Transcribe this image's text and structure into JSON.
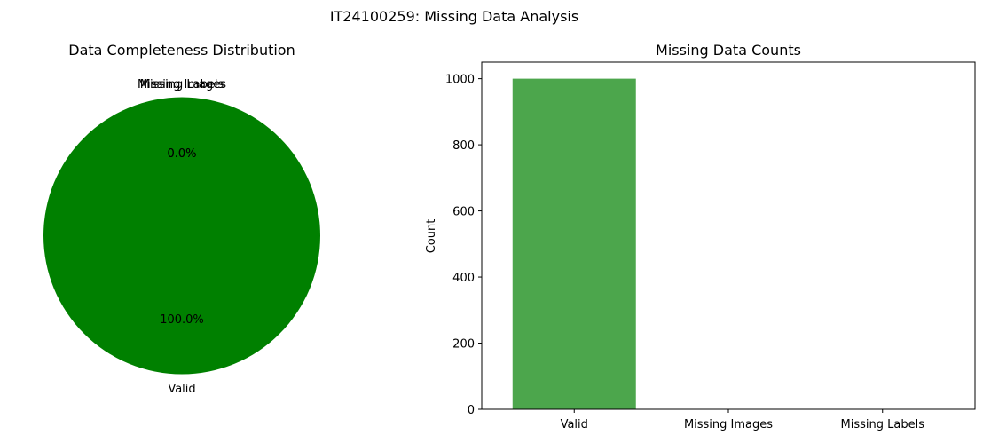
{
  "figure": {
    "title": "IT24100259: Missing Data Analysis"
  },
  "chart_data": [
    {
      "type": "pie",
      "title": "Data Completeness Distribution",
      "labels": [
        "Valid",
        "Missing Images",
        "Missing Labels"
      ],
      "values": [
        1000,
        0,
        0
      ],
      "percent_labels": [
        "100.0%",
        "0.0%",
        "0.0%"
      ],
      "colors": [
        "#008000",
        "#ff0000",
        "#ffa500"
      ],
      "start_angle_deg": 90
    },
    {
      "type": "bar",
      "title": "Missing Data Counts",
      "categories": [
        "Valid",
        "Missing Images",
        "Missing Labels"
      ],
      "values": [
        1000,
        0,
        0
      ],
      "colors": [
        "#008000",
        "#ff0000",
        "#ffa500"
      ],
      "bar_alpha": 0.7,
      "xlabel": "",
      "ylabel": "Count",
      "ylim": [
        0,
        1050
      ],
      "yticks": [
        0,
        200,
        400,
        600,
        800,
        1000
      ],
      "grid": false,
      "legend": "none"
    }
  ]
}
